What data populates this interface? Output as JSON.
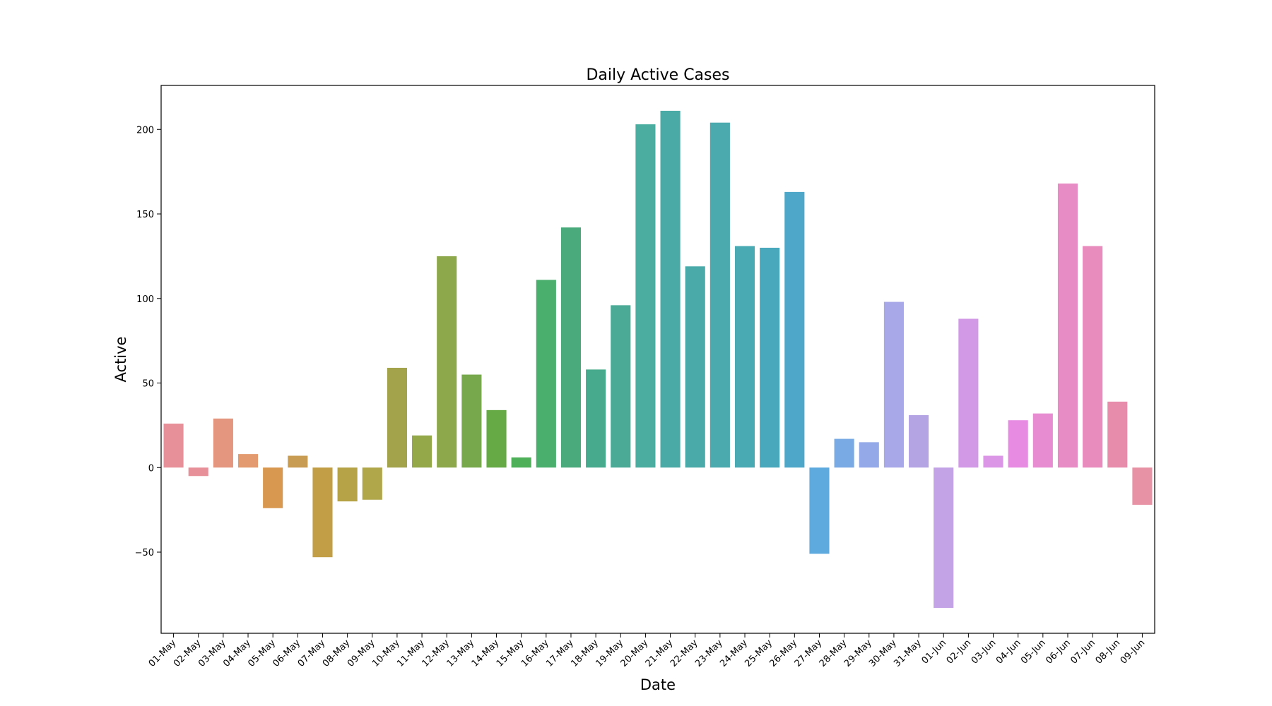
{
  "chart_data": {
    "type": "bar",
    "title": "Daily Active Cases",
    "xlabel": "Date",
    "ylabel": "Active",
    "ylim": [
      -98,
      226
    ],
    "yticks": [
      -50,
      0,
      50,
      100,
      150,
      200
    ],
    "ytick_labels": [
      "−50",
      "0",
      "50",
      "100",
      "150",
      "200"
    ],
    "grid": false,
    "categories": [
      "01-May",
      "02-May",
      "03-May",
      "04-May",
      "05-May",
      "06-May",
      "07-May",
      "08-May",
      "09-May",
      "10-May",
      "11-May",
      "12-May",
      "13-May",
      "14-May",
      "15-May",
      "16-May",
      "17-May",
      "18-May",
      "19-May",
      "20-May",
      "21-May",
      "22-May",
      "23-May",
      "24-May",
      "25-May",
      "26-May",
      "27-May",
      "28-May",
      "29-May",
      "30-May",
      "31-May",
      "01-Jun",
      "02-Jun",
      "03-Jun",
      "04-Jun",
      "05-Jun",
      "06-Jun",
      "07-Jun",
      "08-Jun",
      "09-Jun"
    ],
    "values": [
      26,
      -5,
      29,
      8,
      -24,
      7,
      -53,
      -20,
      -19,
      59,
      19,
      125,
      55,
      34,
      6,
      111,
      142,
      58,
      96,
      203,
      211,
      119,
      204,
      131,
      130,
      163,
      -51,
      17,
      15,
      98,
      31,
      -83,
      88,
      7,
      28,
      32,
      168,
      131,
      39,
      -22
    ],
    "colors": [
      "#e8909a",
      "#e8909a",
      "#e5967e",
      "#e39a6e",
      "#d99850",
      "#c89c52",
      "#c29f47",
      "#b6a247",
      "#b0a64a",
      "#a2a34a",
      "#94a84a",
      "#8da84a",
      "#77a84c",
      "#66aa46",
      "#4fb05a",
      "#4aae6d",
      "#4aaa7c",
      "#48aa8c",
      "#4aaa96",
      "#4aada0",
      "#4aaaa6",
      "#4aaaaa",
      "#4aaaae",
      "#4aaab4",
      "#4aa8bc",
      "#4ea6c8",
      "#5ea9de",
      "#7aaae4",
      "#94aae8",
      "#a8a8e8",
      "#b4a4e4",
      "#c4a2e6",
      "#d29ae6",
      "#dc96e6",
      "#e68ae2",
      "#e88cd2",
      "#e88cc6",
      "#e88cbe",
      "#e88cac",
      "#e893a5"
    ]
  }
}
